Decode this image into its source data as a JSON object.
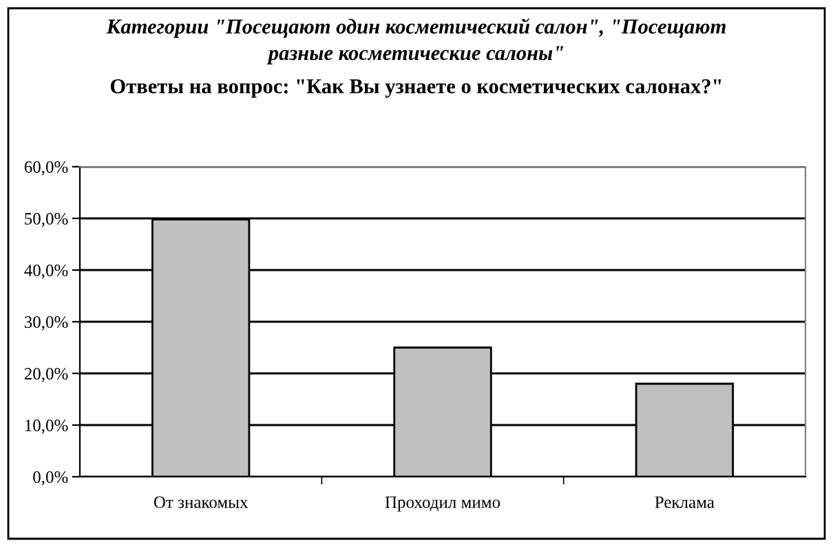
{
  "chart_data": {
    "type": "bar",
    "title": "Категории \"Посещают один косметический салон\", \"Посещают\nразные косметические салоны\"",
    "subtitle": "Ответы на вопрос: \"Как Вы узнаете о косметических салонах?\"",
    "categories": [
      "От знакомых",
      "Проходил мимо",
      "Реклама"
    ],
    "values": [
      49.8,
      25,
      18
    ],
    "color": "#c0c0c0",
    "ylim": [
      0,
      60
    ],
    "yticks": [
      {
        "value": 0,
        "label": "0,0%"
      },
      {
        "value": 10,
        "label": "10,0%"
      },
      {
        "value": 20,
        "label": "20,0%"
      },
      {
        "value": 30,
        "label": "30,0%"
      },
      {
        "value": 40,
        "label": "40,0%"
      },
      {
        "value": 50,
        "label": "50,0%"
      },
      {
        "value": 60,
        "label": "60,0%"
      }
    ],
    "grid": "y",
    "legend": false
  }
}
